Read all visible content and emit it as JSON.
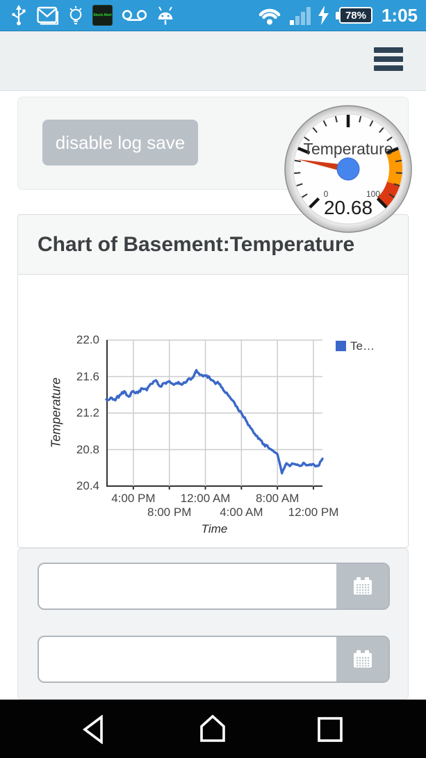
{
  "status_bar": {
    "time": "1:05",
    "battery_percent": "78%",
    "stock_alert_label": "Stock Alert",
    "bg_color": "#2e9ad7",
    "icons": [
      "usb-icon",
      "gmail-icon",
      "bulb-icon",
      "stock-alert-app-icon",
      "voicemail-icon",
      "android-icon",
      "wifi-icon",
      "signal-icon",
      "charging-bolt-icon",
      "battery-icon"
    ]
  },
  "header": {
    "menu_icon": "hamburger-menu"
  },
  "controls_card": {
    "button_label": "disable log save"
  },
  "gauge": {
    "label": "Temperature",
    "value": 20.68,
    "value_text": "20.68",
    "min": 0,
    "max": 100,
    "min_label": "0",
    "max_label": "100",
    "bands": [
      {
        "from": 75,
        "to": 90,
        "color": "#ff9900"
      },
      {
        "from": 90,
        "to": 100,
        "color": "#dc3912"
      }
    ],
    "needle_color": "#cf3a14",
    "hub_color": "#4684ee"
  },
  "chart_card": {
    "title": "Chart of Basement:Temperature"
  },
  "chart_data": {
    "type": "line",
    "title": "",
    "xlabel": "Time",
    "ylabel": "Temperature",
    "ylim": [
      20.4,
      22.0
    ],
    "grid": true,
    "y_ticks": [
      22.0,
      21.6,
      21.2,
      20.8,
      20.4
    ],
    "x_ticks": [
      {
        "index": 6,
        "label": "4:00 PM",
        "row": 1
      },
      {
        "index": 14,
        "label": "8:00 PM",
        "row": 2
      },
      {
        "index": 22,
        "label": "12:00 AM",
        "row": 1
      },
      {
        "index": 30,
        "label": "4:00 AM",
        "row": 2
      },
      {
        "index": 38,
        "label": "8:00 AM",
        "row": 1
      },
      {
        "index": 46,
        "label": "12:00 PM",
        "row": 2
      }
    ],
    "legend": {
      "label": "Te…",
      "color": "#3b68c8",
      "position": "right"
    },
    "series": [
      {
        "name": "Temperature",
        "color": "#3b68c8",
        "x": [
          "1:00 PM",
          "1:30 PM",
          "2:00 PM",
          "2:30 PM",
          "3:00 PM",
          "3:30 PM",
          "4:00 PM",
          "4:30 PM",
          "5:00 PM",
          "5:30 PM",
          "6:00 PM",
          "6:30 PM",
          "7:00 PM",
          "7:30 PM",
          "8:00 PM",
          "8:30 PM",
          "9:00 PM",
          "9:30 PM",
          "10:00 PM",
          "10:30 PM",
          "11:00 PM",
          "11:30 PM",
          "12:00 AM",
          "12:30 AM",
          "1:00 AM",
          "1:30 AM",
          "2:00 AM",
          "2:30 AM",
          "3:00 AM",
          "3:30 AM",
          "4:00 AM",
          "4:30 AM",
          "5:00 AM",
          "5:30 AM",
          "6:00 AM",
          "6:30 AM",
          "7:00 AM",
          "7:30 AM",
          "8:00 AM",
          "8:30 AM",
          "9:00 AM",
          "9:30 AM",
          "10:00 AM",
          "10:30 AM",
          "11:00 AM",
          "11:30 AM",
          "12:00 PM",
          "12:30 PM",
          "1:00 PM"
        ],
        "values": [
          21.35,
          21.37,
          21.34,
          21.4,
          21.44,
          21.38,
          21.44,
          21.42,
          21.47,
          21.45,
          21.52,
          21.56,
          21.49,
          21.53,
          21.55,
          21.51,
          21.54,
          21.52,
          21.56,
          21.58,
          21.67,
          21.62,
          21.61,
          21.58,
          21.54,
          21.52,
          21.45,
          21.4,
          21.34,
          21.27,
          21.2,
          21.12,
          21.04,
          20.97,
          20.92,
          20.86,
          20.82,
          20.79,
          20.75,
          20.54,
          20.65,
          20.63,
          20.64,
          20.62,
          20.65,
          20.63,
          20.64,
          20.62,
          20.7
        ]
      }
    ]
  },
  "form": {
    "fields": [
      {
        "value": "",
        "placeholder": "",
        "icon": "calendar"
      },
      {
        "value": "",
        "placeholder": "",
        "icon": "calendar"
      }
    ]
  },
  "nav_bar": {
    "items": [
      "back",
      "home",
      "recents"
    ]
  }
}
